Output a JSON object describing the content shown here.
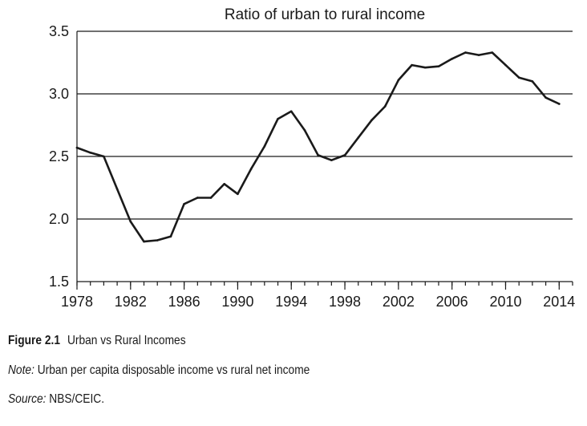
{
  "chart_data": {
    "type": "line",
    "title": "Ratio of urban to rural income",
    "xlabel": "",
    "ylabel": "",
    "xlim": [
      1978,
      2015
    ],
    "ylim": [
      1.5,
      3.5
    ],
    "x_ticks": [
      "1978",
      "1982",
      "1986",
      "1990",
      "1994",
      "1998",
      "2002",
      "2006",
      "2010",
      "2014"
    ],
    "y_ticks": [
      "1.5",
      "2.0",
      "2.5",
      "3.0",
      "3.5"
    ],
    "grid": "horizontal",
    "series": [
      {
        "x": [
          1978,
          1979,
          1980,
          1981,
          1982,
          1983,
          1984,
          1985,
          1986,
          1987,
          1988,
          1989,
          1990,
          1991,
          1992,
          1993,
          1994,
          1995,
          1996,
          1997,
          1998,
          1999,
          2000,
          2001,
          2002,
          2003,
          2004,
          2005,
          2006,
          2007,
          2008,
          2009,
          2010,
          2011,
          2012,
          2013,
          2014
        ],
        "values": [
          2.57,
          2.53,
          2.5,
          2.24,
          1.98,
          1.82,
          1.83,
          1.86,
          2.12,
          2.17,
          2.17,
          2.28,
          2.2,
          2.4,
          2.58,
          2.8,
          2.86,
          2.71,
          2.51,
          2.47,
          2.51,
          2.65,
          2.79,
          2.9,
          3.11,
          3.23,
          3.21,
          3.22,
          3.28,
          3.33,
          3.31,
          3.33,
          3.23,
          3.13,
          3.1,
          2.97,
          2.92
        ]
      }
    ]
  },
  "caption": {
    "figure_label": "Figure 2.1",
    "figure_title": "Urban vs Rural Incomes",
    "note_label": "Note:",
    "note_text": "Urban per capita disposable income vs rural net income",
    "source_label": "Source:",
    "source_text": "NBS/CEIC."
  }
}
